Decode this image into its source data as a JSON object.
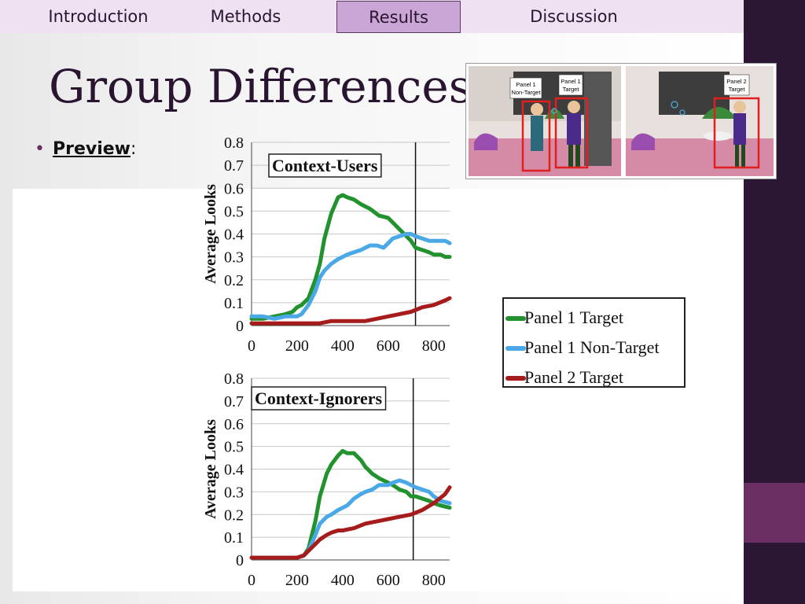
{
  "nav": {
    "tabs": [
      {
        "label": "Introduction",
        "active": false
      },
      {
        "label": "Methods",
        "active": false
      },
      {
        "label": "Results",
        "active": true
      },
      {
        "label": "Discussion",
        "active": false
      }
    ]
  },
  "slide": {
    "title": "Group Differences",
    "bullet_label": "Preview",
    "bullet_suffix": ":"
  },
  "figure": {
    "labels": {
      "p1_nontarget_line1": "Panel 1",
      "p1_nontarget_line2": "Non-Target",
      "p1_target_line1": "Panel 1",
      "p1_target_line2": "Target",
      "p2_target_line1": "Panel 2",
      "p2_target_line2": "Target"
    }
  },
  "legend": {
    "items": [
      {
        "label": "Panel 1 Target",
        "color": "#22922e"
      },
      {
        "label": "Panel 1 Non-Target",
        "color": "#4aa8e6"
      },
      {
        "label": "Panel 2 Target",
        "color": "#a61c1c"
      }
    ]
  },
  "chart_data": [
    {
      "type": "line",
      "title": "Context-Users",
      "ylabel": "Average Looks",
      "xlabel": "",
      "xlim": [
        0,
        870
      ],
      "ylim": [
        0,
        0.8
      ],
      "xticks": [
        0,
        200,
        400,
        600,
        800
      ],
      "yticks": [
        0,
        0.1,
        0.2,
        0.3,
        0.4,
        0.5,
        0.6,
        0.7,
        0.8
      ],
      "ytick_labels": [
        "0",
        "0.1",
        "0.2",
        "0.3",
        "0.4",
        "0.5",
        "0.6",
        "0.7",
        "0.8"
      ],
      "vline_x": 720,
      "grid": "horizontal",
      "series": [
        {
          "color": "#22922e",
          "x": [
            0,
            50,
            100,
            150,
            180,
            200,
            220,
            250,
            280,
            300,
            320,
            350,
            380,
            400,
            420,
            450,
            480,
            520,
            560,
            600,
            620,
            650,
            680,
            700,
            720,
            750,
            780,
            800,
            830,
            850,
            870
          ],
          "y": [
            0.03,
            0.03,
            0.04,
            0.05,
            0.06,
            0.08,
            0.09,
            0.12,
            0.2,
            0.27,
            0.38,
            0.49,
            0.56,
            0.57,
            0.56,
            0.55,
            0.53,
            0.51,
            0.48,
            0.47,
            0.45,
            0.42,
            0.39,
            0.37,
            0.34,
            0.33,
            0.32,
            0.31,
            0.31,
            0.3,
            0.3
          ]
        },
        {
          "color": "#4aa8e6",
          "x": [
            0,
            50,
            100,
            150,
            200,
            220,
            250,
            280,
            300,
            320,
            350,
            380,
            400,
            420,
            450,
            480,
            500,
            520,
            550,
            580,
            600,
            620,
            650,
            680,
            700,
            720,
            750,
            780,
            800,
            830,
            850,
            870
          ],
          "y": [
            0.04,
            0.04,
            0.03,
            0.04,
            0.04,
            0.05,
            0.09,
            0.15,
            0.21,
            0.24,
            0.27,
            0.29,
            0.3,
            0.31,
            0.32,
            0.33,
            0.34,
            0.35,
            0.35,
            0.34,
            0.36,
            0.38,
            0.39,
            0.4,
            0.4,
            0.39,
            0.38,
            0.37,
            0.37,
            0.37,
            0.37,
            0.36
          ]
        },
        {
          "color": "#a61c1c",
          "x": [
            0,
            100,
            200,
            300,
            350,
            400,
            450,
            500,
            550,
            600,
            650,
            700,
            750,
            800,
            850,
            870
          ],
          "y": [
            0.01,
            0.01,
            0.01,
            0.01,
            0.02,
            0.02,
            0.02,
            0.02,
            0.03,
            0.04,
            0.05,
            0.06,
            0.08,
            0.09,
            0.11,
            0.12
          ]
        }
      ]
    },
    {
      "type": "line",
      "title": "Context-Ignorers",
      "ylabel": "Average Looks",
      "xlabel": "",
      "xlim": [
        0,
        870
      ],
      "ylim": [
        0,
        0.8
      ],
      "xticks": [
        0,
        200,
        400,
        600,
        800
      ],
      "yticks": [
        0,
        0.1,
        0.2,
        0.3,
        0.4,
        0.5,
        0.6,
        0.7,
        0.8
      ],
      "ytick_labels": [
        "0",
        "0.1",
        "0.2",
        "0.3",
        "0.4",
        "0.5",
        "0.6",
        "0.7",
        "0.8"
      ],
      "vline_x": 710,
      "grid": "horizontal",
      "series": [
        {
          "color": "#22922e",
          "x": [
            0,
            100,
            200,
            230,
            250,
            280,
            300,
            330,
            350,
            380,
            400,
            420,
            450,
            480,
            500,
            530,
            560,
            600,
            620,
            650,
            680,
            700,
            720,
            750,
            780,
            800,
            830,
            870
          ],
          "y": [
            0.01,
            0.01,
            0.01,
            0.02,
            0.05,
            0.17,
            0.28,
            0.38,
            0.42,
            0.46,
            0.48,
            0.47,
            0.47,
            0.44,
            0.41,
            0.38,
            0.36,
            0.34,
            0.33,
            0.31,
            0.3,
            0.28,
            0.28,
            0.27,
            0.26,
            0.25,
            0.24,
            0.23
          ]
        },
        {
          "color": "#4aa8e6",
          "x": [
            0,
            100,
            200,
            230,
            250,
            280,
            300,
            330,
            350,
            380,
            400,
            420,
            450,
            480,
            500,
            530,
            560,
            600,
            620,
            650,
            680,
            700,
            720,
            750,
            780,
            800,
            830,
            870
          ],
          "y": [
            0.01,
            0.01,
            0.01,
            0.02,
            0.04,
            0.11,
            0.16,
            0.19,
            0.2,
            0.22,
            0.23,
            0.24,
            0.27,
            0.29,
            0.3,
            0.31,
            0.33,
            0.33,
            0.34,
            0.35,
            0.34,
            0.33,
            0.32,
            0.31,
            0.3,
            0.28,
            0.26,
            0.25
          ]
        },
        {
          "color": "#a61c1c",
          "x": [
            0,
            100,
            200,
            230,
            250,
            280,
            300,
            330,
            350,
            380,
            400,
            450,
            500,
            550,
            600,
            650,
            700,
            750,
            800,
            850,
            870
          ],
          "y": [
            0.01,
            0.01,
            0.01,
            0.02,
            0.04,
            0.07,
            0.09,
            0.11,
            0.12,
            0.13,
            0.13,
            0.14,
            0.16,
            0.17,
            0.18,
            0.19,
            0.2,
            0.22,
            0.25,
            0.29,
            0.32
          ]
        }
      ]
    }
  ]
}
